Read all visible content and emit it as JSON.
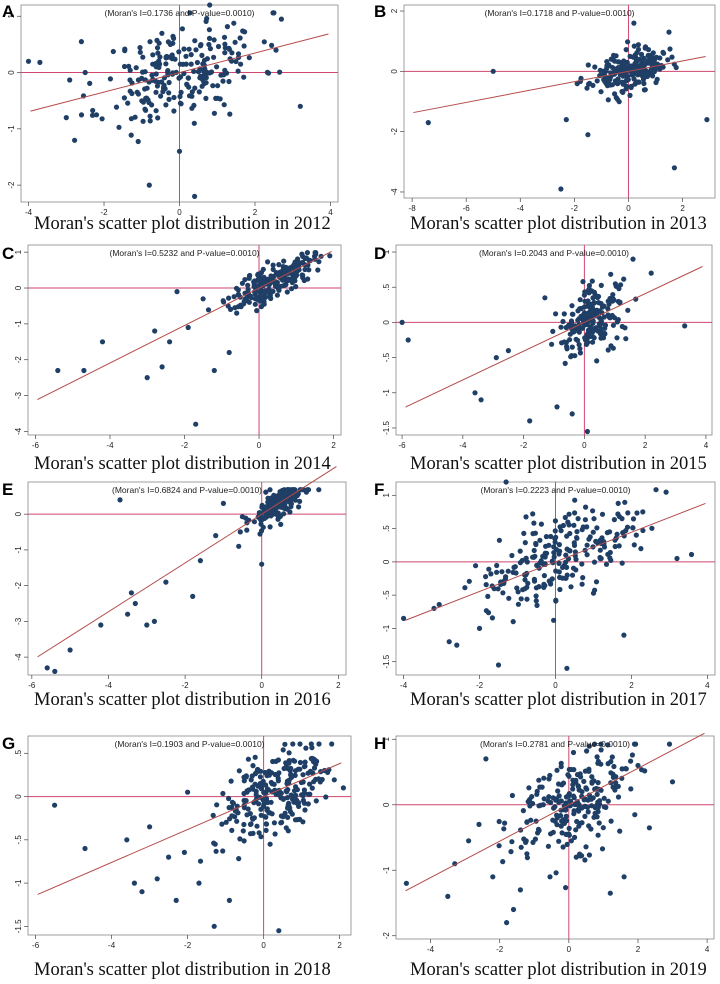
{
  "figure": {
    "colors": {
      "point": "#1f3f66",
      "fit_line": "#b44a4a",
      "axis_cross": "#d0466e",
      "frame": "#888888"
    }
  },
  "chart_data": [
    {
      "type": "scatter",
      "panel": "A",
      "year": "2012",
      "annotation": "(Moran's I=0.1736 and P-value=0.0010)",
      "caption": "Moran's scatter plot distribution in 2012",
      "xlim": [
        -4.2,
        4.2
      ],
      "ylim": [
        -2.3,
        1.2
      ],
      "xticks": [
        "-4",
        "-2",
        "0",
        "2",
        "4"
      ],
      "yticks": [
        "-2",
        "-1",
        "0",
        "1"
      ],
      "xtick_values": [
        -4,
        -2,
        0,
        2,
        4
      ],
      "ytick_values": [
        -2,
        -1,
        0,
        1
      ],
      "slope": 0.1736,
      "points": {
        "n": 230,
        "x_mean": 0.05,
        "x_sd": 1.05,
        "noise_sd": 0.42,
        "seed": 11
      },
      "outliers": [
        [
          -4.0,
          0.2
        ],
        [
          -3.7,
          0.18
        ],
        [
          -2.6,
          0.55
        ],
        [
          -2.5,
          0
        ],
        [
          -3.0,
          -0.8
        ],
        [
          -2.2,
          -0.75
        ],
        [
          -0.8,
          -2.0
        ],
        [
          0.4,
          -2.2
        ],
        [
          0.0,
          -1.4
        ],
        [
          3.2,
          -0.6
        ],
        [
          2.7,
          0.95
        ],
        [
          0.8,
          1.2
        ]
      ]
    },
    {
      "type": "scatter",
      "panel": "B",
      "year": "2013",
      "annotation": "(Moran's I=0.1718 and P-value=0.0010)",
      "caption": "Moran's scatter plot distribution in 2013",
      "xlim": [
        -8.3,
        3.2
      ],
      "ylim": [
        -4.2,
        2.2
      ],
      "xticks": [
        "-8",
        "-6",
        "-4",
        "-2",
        "0",
        "2"
      ],
      "yticks": [
        "-4",
        "-2",
        "0",
        "2"
      ],
      "xtick_values": [
        -8,
        -6,
        -4,
        -2,
        0,
        2
      ],
      "ytick_values": [
        -4,
        -2,
        0,
        2
      ],
      "slope": 0.1718,
      "points": {
        "n": 220,
        "x_mean": 0.0,
        "x_sd": 0.7,
        "noise_sd": 0.32,
        "seed": 23
      },
      "outliers": [
        [
          -7.4,
          -1.7
        ],
        [
          -5.0,
          0.0
        ],
        [
          -2.5,
          -3.9
        ],
        [
          -2.3,
          -1.6
        ],
        [
          -1.5,
          -2.1
        ],
        [
          0.2,
          1.6
        ],
        [
          1.5,
          1.3
        ],
        [
          1.7,
          -3.2
        ],
        [
          2.9,
          -1.6
        ],
        [
          1.3,
          0.6
        ]
      ]
    },
    {
      "type": "scatter",
      "panel": "C",
      "year": "2014",
      "annotation": "(Moran's I=0.5232 and P-value=0.0010)",
      "caption": "Moran's scatter plot distribution in 2014",
      "xlim": [
        -6.2,
        2.2
      ],
      "ylim": [
        -4.1,
        1.2
      ],
      "xticks": [
        "-6",
        "-4",
        "-2",
        "0",
        "2"
      ],
      "yticks": [
        "-4",
        "-3",
        "-2",
        "-1",
        "0",
        "1"
      ],
      "xtick_values": [
        -6,
        -4,
        -2,
        0,
        2
      ],
      "ytick_values": [
        -4,
        -3,
        -2,
        -1,
        0,
        1
      ],
      "slope": 0.5232,
      "points": {
        "n": 210,
        "x_mean": 0.35,
        "x_sd": 0.55,
        "noise_sd": 0.25,
        "seed": 37
      },
      "outliers": [
        [
          -5.4,
          -2.3
        ],
        [
          -4.7,
          -2.3
        ],
        [
          -4.2,
          -1.5
        ],
        [
          -3.0,
          -2.5
        ],
        [
          -2.8,
          -1.2
        ],
        [
          -2.6,
          -2.2
        ],
        [
          -2.4,
          -1.5
        ],
        [
          -2.2,
          -0.1
        ],
        [
          -1.9,
          -1.1
        ],
        [
          -1.7,
          -3.8
        ],
        [
          -1.5,
          -0.3
        ],
        [
          -1.2,
          -2.3
        ],
        [
          -0.8,
          -1.8
        ],
        [
          -0.6,
          -0.7
        ],
        [
          1.9,
          0.9
        ],
        [
          1.5,
          0.8
        ]
      ]
    },
    {
      "type": "scatter",
      "panel": "D",
      "year": "2015",
      "annotation": "(Moran's I=0.2043 and P-value=0.0010)",
      "caption": "Moran's scatter plot distribution in 2015",
      "xlim": [
        -6.2,
        4.2
      ],
      "ylim": [
        -1.6,
        1.1
      ],
      "xticks": [
        "-6",
        "-4",
        "-2",
        "0",
        "2",
        "4"
      ],
      "yticks": [
        "-1.5",
        "-1",
        "-.5",
        "0",
        ".5",
        "1"
      ],
      "xtick_values": [
        -6,
        -4,
        -2,
        0,
        2,
        4
      ],
      "ytick_values": [
        -1.5,
        -1,
        -0.5,
        0,
        0.5,
        1
      ],
      "slope": 0.2043,
      "points": {
        "n": 200,
        "x_mean": 0.25,
        "x_sd": 0.55,
        "noise_sd": 0.22,
        "seed": 41
      },
      "outliers": [
        [
          -6.0,
          0.0
        ],
        [
          -5.8,
          -0.25
        ],
        [
          -3.6,
          -1.0
        ],
        [
          -3.4,
          -1.1
        ],
        [
          -2.9,
          -0.5
        ],
        [
          -2.5,
          -0.4
        ],
        [
          -1.8,
          -1.4
        ],
        [
          -1.3,
          0.35
        ],
        [
          -0.9,
          -1.2
        ],
        [
          -0.4,
          -1.3
        ],
        [
          0.1,
          -1.55
        ],
        [
          1.6,
          0.9
        ],
        [
          2.2,
          0.7
        ],
        [
          3.3,
          -0.05
        ]
      ]
    },
    {
      "type": "scatter",
      "panel": "E",
      "year": "2016",
      "annotation": "(Moran's I=0.6824 and P-value=0.0010)",
      "caption": "Moran's scatter plot distribution in 2016",
      "xlim": [
        -6.1,
        2.2
      ],
      "ylim": [
        -4.5,
        0.9
      ],
      "xticks": [
        "-6",
        "-4",
        "-2",
        "0",
        "2"
      ],
      "yticks": [
        "-4",
        "-3",
        "-2",
        "-1",
        "0"
      ],
      "xtick_values": [
        -6,
        -4,
        -2,
        0,
        2
      ],
      "ytick_values": [
        -4,
        -3,
        -2,
        -1,
        0
      ],
      "slope": 0.6824,
      "points": {
        "n": 170,
        "x_mean": 0.45,
        "x_sd": 0.38,
        "noise_sd": 0.22,
        "seed": 53
      },
      "outliers": [
        [
          -5.6,
          -4.3
        ],
        [
          -5.4,
          -4.4
        ],
        [
          -5.0,
          -3.8
        ],
        [
          -4.2,
          -3.1
        ],
        [
          -3.7,
          0.4
        ],
        [
          -3.5,
          -2.8
        ],
        [
          -3.4,
          -2.2
        ],
        [
          -3.3,
          -2.5
        ],
        [
          -3.0,
          -3.1
        ],
        [
          -2.8,
          -3.0
        ],
        [
          -2.5,
          -1.9
        ],
        [
          -1.8,
          -2.3
        ],
        [
          -1.6,
          -1.3
        ],
        [
          -1.2,
          -0.6
        ],
        [
          -1.0,
          0.3
        ],
        [
          -0.6,
          -0.9
        ],
        [
          0.0,
          -1.4
        ]
      ]
    },
    {
      "type": "scatter",
      "panel": "F",
      "year": "2017",
      "annotation": "(Moran's I=0.2223 and P-value=0.0010)",
      "caption": "Moran's scatter plot distribution in 2017",
      "xlim": [
        -4.2,
        4.2
      ],
      "ylim": [
        -1.7,
        1.2
      ],
      "xticks": [
        "-4",
        "-2",
        "0",
        "2",
        "4"
      ],
      "yticks": [
        "-1.5",
        "-1",
        "-.5",
        "0",
        ".5",
        "1"
      ],
      "xtick_values": [
        -4,
        -2,
        0,
        2,
        4
      ],
      "ytick_values": [
        -1.5,
        -1,
        -0.5,
        0,
        0.5,
        1
      ],
      "slope": 0.2223,
      "points": {
        "n": 230,
        "x_mean": 0.0,
        "x_sd": 1.05,
        "noise_sd": 0.32,
        "seed": 67
      },
      "outliers": [
        [
          -4.0,
          -0.85
        ],
        [
          -3.2,
          -0.7
        ],
        [
          -2.8,
          -1.2
        ],
        [
          -2.6,
          -1.25
        ],
        [
          -2.0,
          -1.0
        ],
        [
          -1.5,
          -1.55
        ],
        [
          -1.3,
          1.2
        ],
        [
          0.3,
          -1.6
        ],
        [
          1.8,
          -1.1
        ],
        [
          3.2,
          0.05
        ],
        [
          2.3,
          0.75
        ]
      ]
    },
    {
      "type": "scatter",
      "panel": "G",
      "year": "2018",
      "annotation": "(Moran's I=0.1903 and P-value=0.0010)",
      "caption": "Moran's scatter plot distribution in 2018",
      "xlim": [
        -6.2,
        2.3
      ],
      "ylim": [
        -1.6,
        0.7
      ],
      "xticks": [
        "-6",
        "-4",
        "-2",
        "0",
        "2"
      ],
      "yticks": [
        "-1.5",
        "-1",
        "-.5",
        "0",
        ".5"
      ],
      "xtick_values": [
        -6,
        -4,
        -2,
        0,
        2
      ],
      "ytick_values": [
        -1.5,
        -1,
        -0.5,
        0,
        0.5
      ],
      "slope": 0.1903,
      "points": {
        "n": 250,
        "x_mean": 0.25,
        "x_sd": 0.75,
        "noise_sd": 0.24,
        "seed": 79
      },
      "outliers": [
        [
          -5.5,
          -0.1
        ],
        [
          -4.7,
          -0.6
        ],
        [
          -3.6,
          -0.5
        ],
        [
          -3.4,
          -1.0
        ],
        [
          -3.2,
          -1.1
        ],
        [
          -3.0,
          -0.35
        ],
        [
          -2.8,
          -0.95
        ],
        [
          -2.5,
          -0.7
        ],
        [
          -2.3,
          -1.2
        ],
        [
          -2.0,
          0.05
        ],
        [
          -1.7,
          -1.0
        ],
        [
          -1.3,
          -1.5
        ],
        [
          -0.9,
          -1.2
        ],
        [
          0.4,
          -1.55
        ],
        [
          2.1,
          0.1
        ]
      ]
    },
    {
      "type": "scatter",
      "panel": "H",
      "year": "2019",
      "annotation": "(Moran's I=0.2781 and P-value=0.0010)",
      "caption": "Moran's scatter plot distribution in 2019",
      "xlim": [
        -5.0,
        4.2
      ],
      "ylim": [
        -2.05,
        1.05
      ],
      "xticks": [
        "-4",
        "-2",
        "0",
        "2",
        "4"
      ],
      "yticks": [
        "-2",
        "-1",
        "0",
        "1"
      ],
      "xtick_values": [
        -4,
        -2,
        0,
        2,
        4
      ],
      "ytick_values": [
        -2,
        -1,
        0,
        1
      ],
      "slope": 0.2781,
      "points": {
        "n": 240,
        "x_mean": 0.0,
        "x_sd": 0.95,
        "noise_sd": 0.42,
        "seed": 97
      },
      "outliers": [
        [
          -4.7,
          -1.2
        ],
        [
          -3.5,
          -1.4
        ],
        [
          -3.3,
          -0.9
        ],
        [
          -2.9,
          -0.55
        ],
        [
          -2.6,
          -0.3
        ],
        [
          -2.4,
          0.7
        ],
        [
          -2.2,
          -1.1
        ],
        [
          -1.8,
          -1.8
        ],
        [
          -1.6,
          -1.6
        ],
        [
          -1.4,
          -1.3
        ],
        [
          1.2,
          -1.35
        ],
        [
          1.6,
          -1.1
        ],
        [
          2.0,
          0.6
        ],
        [
          3.0,
          0.35
        ]
      ]
    }
  ]
}
